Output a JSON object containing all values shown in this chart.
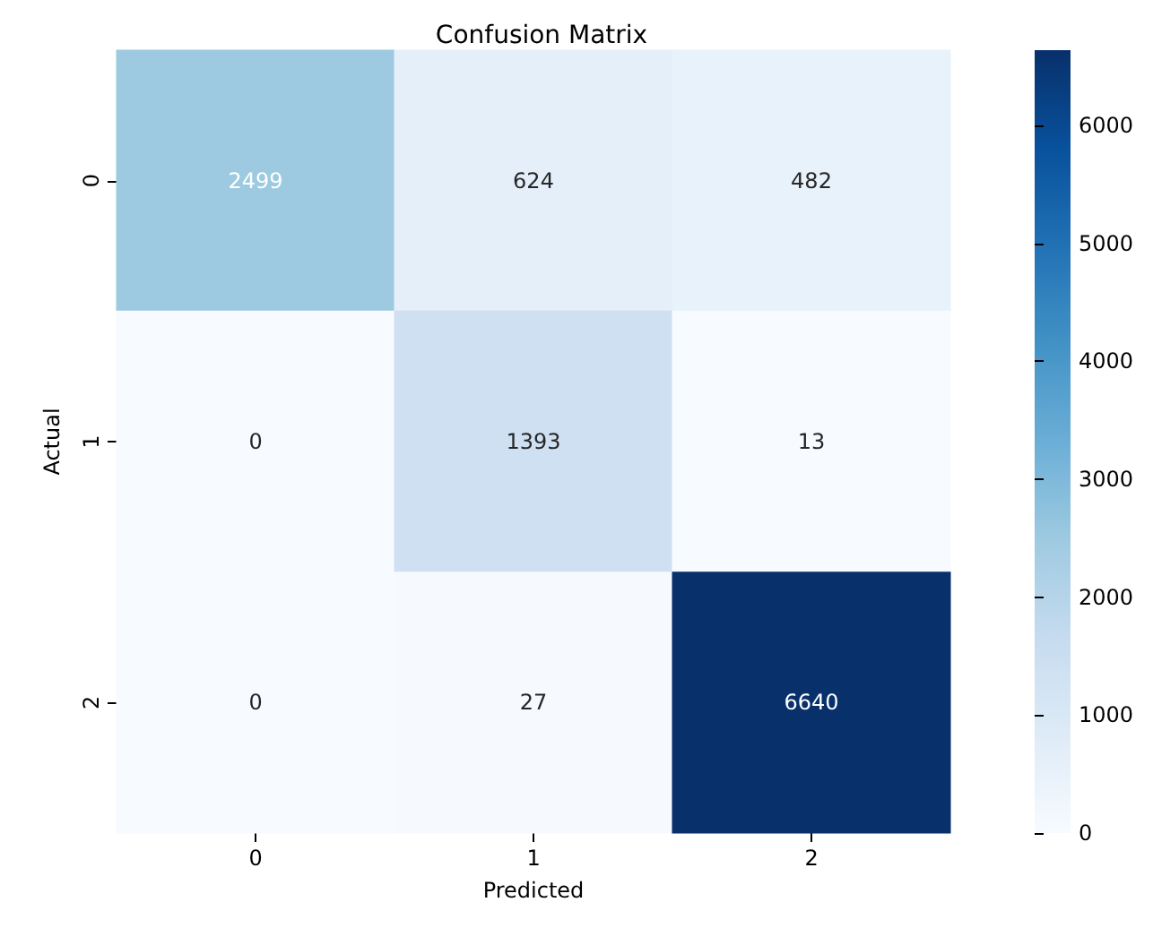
{
  "chart_data": {
    "type": "heatmap",
    "title": "Confusion Matrix",
    "xlabel": "Predicted",
    "ylabel": "Actual",
    "categories": [
      "0",
      "1",
      "2"
    ],
    "y_categories": [
      "0",
      "1",
      "2"
    ],
    "cells": [
      [
        2499,
        624,
        482
      ],
      [
        0,
        1393,
        13
      ],
      [
        0,
        27,
        6640
      ]
    ],
    "data_labels": true,
    "clim": [
      0,
      6640
    ],
    "cticks": [
      0,
      1000,
      2000,
      3000,
      4000,
      5000,
      6000
    ]
  }
}
